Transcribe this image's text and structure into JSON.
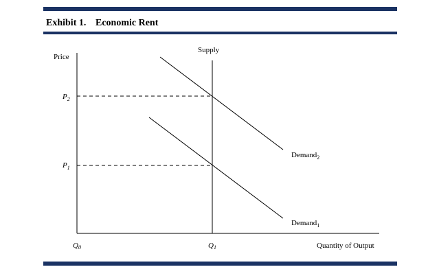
{
  "header": {
    "number": "Exhibit 1.",
    "title": "Economic Rent"
  },
  "labels": {
    "price": "Price",
    "supply": "Supply",
    "quantity": "Quantity of Output",
    "p2": {
      "main": "P",
      "sub": "2"
    },
    "p1": {
      "main": "P",
      "sub": "1"
    },
    "q0": {
      "main": "Q",
      "sub": "0"
    },
    "q1": {
      "main": "Q",
      "sub": "1"
    },
    "demand2": {
      "main": "Demand",
      "sub": "2"
    },
    "demand1": {
      "main": "Demand",
      "sub": "1"
    }
  }
}
